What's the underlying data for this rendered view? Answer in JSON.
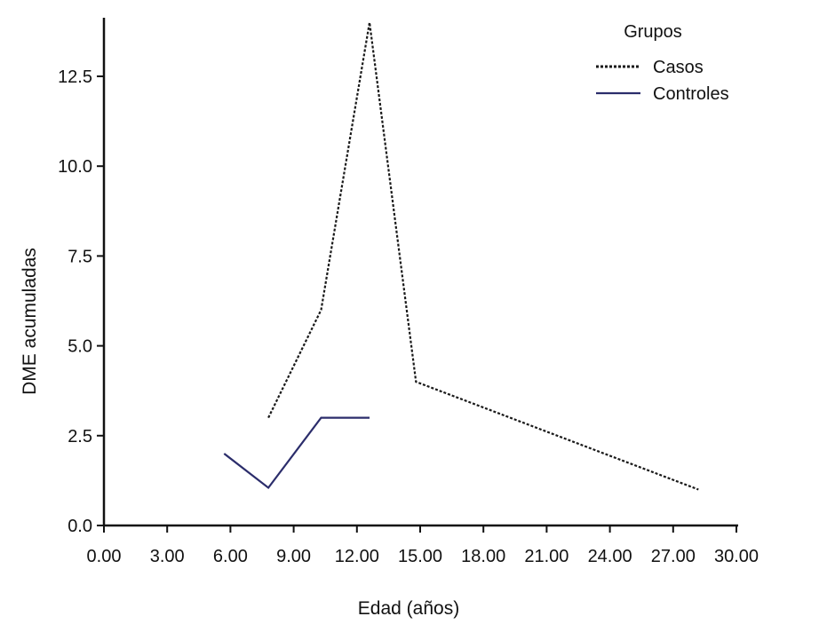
{
  "chart_data": {
    "type": "line",
    "title": "",
    "xlabel": "Edad (años)",
    "ylabel": "DME acumuladas",
    "xlim": [
      0,
      30
    ],
    "ylim": [
      0,
      14
    ],
    "x_ticks": [
      0,
      3,
      6,
      9,
      12,
      15,
      18,
      21,
      24,
      27,
      30
    ],
    "x_tick_labels": [
      "0.00",
      "3.00",
      "6.00",
      "9.00",
      "12.00",
      "15.00",
      "18.00",
      "21.00",
      "24.00",
      "27.00",
      "30.00"
    ],
    "y_ticks": [
      0,
      2.5,
      5,
      7.5,
      10,
      12.5
    ],
    "y_tick_labels": [
      "0.0",
      "2.5",
      "5.0",
      "7.5",
      "10.0",
      "12.5"
    ],
    "grid": false,
    "legend": {
      "title": "Grupos",
      "placement": "top-right"
    },
    "series": [
      {
        "name": "Casos",
        "style": "dotted",
        "color": "#1a1a1a",
        "x": [
          7.8,
          10.3,
          12.6,
          14.8,
          28.2
        ],
        "y": [
          3.0,
          6.0,
          14.0,
          4.0,
          1.0
        ]
      },
      {
        "name": "Controles",
        "style": "solid",
        "color": "#2b2d6b",
        "x": [
          5.7,
          7.8,
          10.3,
          12.6
        ],
        "y": [
          2.0,
          1.05,
          3.0,
          3.0
        ]
      }
    ]
  }
}
